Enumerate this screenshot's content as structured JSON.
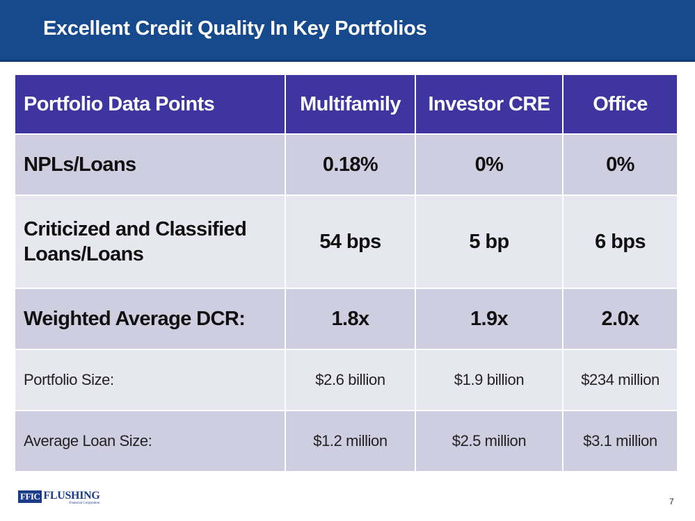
{
  "header": {
    "title": "Excellent Credit Quality In Key Portfolios"
  },
  "table": {
    "columns": [
      "Portfolio Data Points",
      "Multifamily",
      "Investor CRE",
      "Office"
    ],
    "rows": [
      {
        "label": "NPLs/Loans",
        "multifamily": "0.18%",
        "investor_cre": "0%",
        "office": "0%"
      },
      {
        "label": "Criticized and Classified Loans/Loans",
        "multifamily": "54 bps",
        "investor_cre": "5 bp",
        "office": "6 bps"
      },
      {
        "label": "Weighted Average DCR:",
        "multifamily": "1.8x",
        "investor_cre": "1.9x",
        "office": "2.0x"
      },
      {
        "label": "Portfolio Size:",
        "multifamily": "$2.6 billion",
        "investor_cre": "$1.9 billion",
        "office": "$234 million"
      },
      {
        "label": "Average Loan Size:",
        "multifamily": "$1.2 million",
        "investor_cre": "$2.5 million",
        "office": "$3.1 million"
      }
    ]
  },
  "footer": {
    "logo_mark": "FFIC",
    "logo_name": "FLUSHING",
    "logo_subtitle": "Financial Corporation",
    "page_number": "7"
  },
  "colors": {
    "header_bg": "#174a8c",
    "table_header_bg": "#3e35a0",
    "row_dark": "#cfcde0",
    "row_light": "#e7e7ef"
  }
}
